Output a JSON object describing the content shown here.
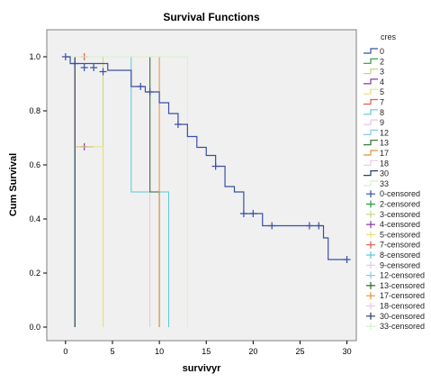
{
  "chart_data": {
    "type": "line",
    "step": true,
    "title": "Survival Functions",
    "xlabel": "survivyr",
    "ylabel": "Cum Survival",
    "xlim": [
      -2,
      31
    ],
    "ylim": [
      -0.05,
      1.1
    ],
    "xticks": [
      "0",
      "5",
      "10",
      "15",
      "20",
      "25",
      "30"
    ],
    "yticks": [
      "0.0",
      "0.2",
      "0.4",
      "0.6",
      "0.8",
      "1.0"
    ],
    "grid": false,
    "background": "#f0f0f0",
    "legend": {
      "title": "cres",
      "placement": "right",
      "items": [
        {
          "label": "0",
          "kind": "step",
          "color": "#3a4fa3"
        },
        {
          "label": "2",
          "kind": "step",
          "color": "#2a9a3a"
        },
        {
          "label": "3",
          "kind": "step",
          "color": "#c8d77a"
        },
        {
          "label": "4",
          "kind": "step",
          "color": "#8a3a9a"
        },
        {
          "label": "5",
          "kind": "step",
          "color": "#e8e07a"
        },
        {
          "label": "7",
          "kind": "step",
          "color": "#e05a4a"
        },
        {
          "label": "8",
          "kind": "step",
          "color": "#5ac8d8"
        },
        {
          "label": "9",
          "kind": "step",
          "color": "#e0c8e8"
        },
        {
          "label": "12",
          "kind": "step",
          "color": "#8ac8e8"
        },
        {
          "label": "13",
          "kind": "step",
          "color": "#2a6a2a"
        },
        {
          "label": "17",
          "kind": "step",
          "color": "#e8903a"
        },
        {
          "label": "18",
          "kind": "step",
          "color": "#f0c8e8"
        },
        {
          "label": "30",
          "kind": "step",
          "color": "#2a3a6a"
        },
        {
          "label": "33",
          "kind": "step",
          "color": "#d8f0c8"
        },
        {
          "label": "0-censored",
          "kind": "cross",
          "color": "#3a4fa3"
        },
        {
          "label": "2-censored",
          "kind": "cross",
          "color": "#2a9a3a"
        },
        {
          "label": "3-censored",
          "kind": "cross",
          "color": "#c8d77a"
        },
        {
          "label": "4-censored",
          "kind": "cross",
          "color": "#8a3a9a"
        },
        {
          "label": "5-censored",
          "kind": "cross",
          "color": "#e8e07a"
        },
        {
          "label": "7-censored",
          "kind": "cross",
          "color": "#e05a4a"
        },
        {
          "label": "8-censored",
          "kind": "cross",
          "color": "#5ac8d8"
        },
        {
          "label": "9-censored",
          "kind": "cross",
          "color": "#e0c8e8"
        },
        {
          "label": "12-censored",
          "kind": "cross",
          "color": "#8ac8e8"
        },
        {
          "label": "13-censored",
          "kind": "cross",
          "color": "#2a6a2a"
        },
        {
          "label": "17-censored",
          "kind": "cross",
          "color": "#e8903a"
        },
        {
          "label": "18-censored",
          "kind": "cross",
          "color": "#f0c8e8"
        },
        {
          "label": "30-censored",
          "kind": "cross",
          "color": "#2a3a6a"
        },
        {
          "label": "33-censored",
          "kind": "cross",
          "color": "#d8f0c8"
        }
      ]
    },
    "series": [
      {
        "name": "0",
        "color": "#3a4fa3",
        "points": [
          [
            0,
            1.0
          ],
          [
            0.5,
            0.975
          ],
          [
            4.5,
            0.95
          ],
          [
            7,
            0.89
          ],
          [
            8.5,
            0.87
          ],
          [
            10,
            0.83
          ],
          [
            11,
            0.79
          ],
          [
            12,
            0.75
          ],
          [
            13,
            0.705
          ],
          [
            14,
            0.665
          ],
          [
            15,
            0.635
          ],
          [
            16,
            0.595
          ],
          [
            17,
            0.52
          ],
          [
            18,
            0.5
          ],
          [
            19,
            0.42
          ],
          [
            21,
            0.375
          ],
          [
            27.5,
            0.33
          ],
          [
            28,
            0.25
          ],
          [
            30,
            0.25
          ]
        ],
        "censored": [
          [
            0,
            1.0
          ],
          [
            1,
            0.975
          ],
          [
            2,
            0.96
          ],
          [
            3,
            0.96
          ],
          [
            4,
            0.945
          ],
          [
            8,
            0.89
          ],
          [
            9,
            0.87
          ],
          [
            12,
            0.75
          ],
          [
            16,
            0.595
          ],
          [
            19,
            0.42
          ],
          [
            20,
            0.42
          ],
          [
            22,
            0.375
          ],
          [
            26,
            0.375
          ],
          [
            27,
            0.375
          ],
          [
            30,
            0.25
          ]
        ]
      },
      {
        "name": "2",
        "color": "#2a9a3a",
        "points": [
          [
            0,
            1.0
          ],
          [
            1,
            1.0
          ],
          [
            1,
            0.0
          ]
        ],
        "censored": []
      },
      {
        "name": "3",
        "color": "#c8d77a",
        "points": [
          [
            0,
            1.0
          ],
          [
            4,
            1.0
          ],
          [
            4,
            0.0
          ]
        ],
        "censored": []
      },
      {
        "name": "4",
        "color": "#8a3a9a",
        "points": [
          [
            0,
            1.0
          ],
          [
            1,
            1.0
          ],
          [
            1,
            0.667
          ],
          [
            3,
            0.667
          ],
          [
            3,
            0.667
          ]
        ],
        "censored": [
          [
            2,
            0.667
          ]
        ]
      },
      {
        "name": "5",
        "color": "#e8e07a",
        "points": [
          [
            0,
            1.0
          ],
          [
            1,
            1.0
          ],
          [
            1,
            0.667
          ],
          [
            4,
            0.667
          ],
          [
            4,
            0.0
          ]
        ],
        "censored": []
      },
      {
        "name": "7",
        "color": "#e05a4a",
        "points": [
          [
            0,
            1.0
          ],
          [
            2,
            1.0
          ]
        ],
        "censored": [
          [
            2,
            1.0
          ]
        ]
      },
      {
        "name": "8",
        "color": "#5ac8d8",
        "points": [
          [
            0,
            1.0
          ],
          [
            7,
            1.0
          ],
          [
            7,
            0.5
          ],
          [
            11,
            0.5
          ],
          [
            11,
            0.0
          ]
        ],
        "censored": []
      },
      {
        "name": "9",
        "color": "#e0c8e8",
        "points": [
          [
            0,
            1.0
          ],
          [
            9,
            1.0
          ],
          [
            9,
            0.0
          ]
        ],
        "censored": []
      },
      {
        "name": "12",
        "color": "#8ac8e8",
        "points": [
          [
            0,
            1.0
          ],
          [
            12,
            1.0
          ]
        ],
        "censored": []
      },
      {
        "name": "13",
        "color": "#2a6a2a",
        "points": [
          [
            0,
            1.0
          ],
          [
            9,
            1.0
          ],
          [
            9,
            0.5
          ],
          [
            10,
            0.5
          ],
          [
            10,
            0.0
          ]
        ],
        "censored": []
      },
      {
        "name": "17",
        "color": "#e8903a",
        "points": [
          [
            0,
            1.0
          ],
          [
            10,
            1.0
          ],
          [
            10,
            0.0
          ]
        ],
        "censored": []
      },
      {
        "name": "18",
        "color": "#f0c8e8",
        "points": [
          [
            0,
            1.0
          ],
          [
            13,
            1.0
          ]
        ],
        "censored": []
      },
      {
        "name": "30",
        "color": "#2a3a6a",
        "points": [
          [
            0,
            1.0
          ],
          [
            1,
            1.0
          ],
          [
            1,
            0.0
          ]
        ],
        "censored": []
      },
      {
        "name": "33",
        "color": "#d8f0c8",
        "points": [
          [
            0,
            1.0
          ],
          [
            13,
            1.0
          ],
          [
            13,
            0.0
          ]
        ],
        "censored": []
      }
    ]
  }
}
